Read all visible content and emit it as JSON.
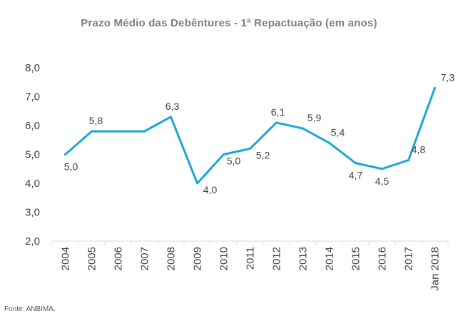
{
  "chart_data": {
    "type": "line",
    "title": "Prazo Médio das Debêntures - 1ª Repactuação  (em anos)",
    "categories": [
      "2004",
      "2005",
      "2006",
      "2007",
      "2008",
      "2009",
      "2010",
      "2011",
      "2012",
      "2013",
      "2014",
      "2015",
      "2016",
      "2017",
      "Jan 2018"
    ],
    "series": [
      {
        "values": [
          5.0,
          5.8,
          5.8,
          5.8,
          6.3,
          4.0,
          5.0,
          5.2,
          6.1,
          5.9,
          5.4,
          4.7,
          4.5,
          4.8,
          7.3
        ],
        "labels": [
          "5,0",
          "5,8",
          "",
          "",
          "6,3",
          "4,0",
          "5,0",
          "5,2",
          "6,1",
          "5,9",
          "5,4",
          "4,7",
          "4,5",
          "4,8",
          "7,3"
        ]
      }
    ],
    "ylim": [
      2.0,
      8.0
    ],
    "yticks": [
      "2,0",
      "3,0",
      "4,0",
      "5,0",
      "6,0",
      "7,0",
      "8,0"
    ],
    "grid": false,
    "line_color": "#1aa7d8",
    "source": "Fonte:  ANBIMA."
  }
}
